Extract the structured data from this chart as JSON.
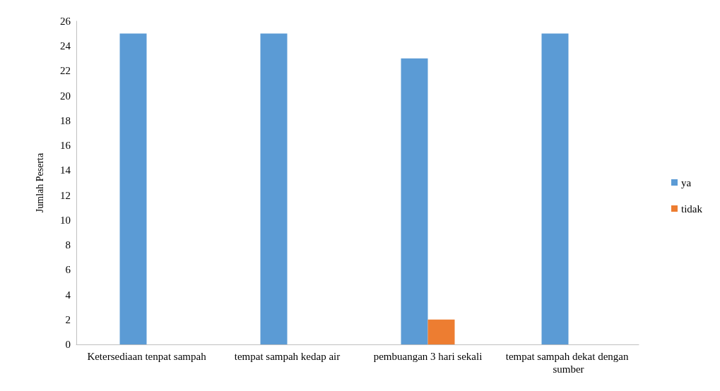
{
  "chart_data": {
    "type": "bar",
    "ylabel": "Jumlah Peserta",
    "categories": [
      "Ketersediaan tenpat sampah",
      "tempat sampah kedap air",
      "pembuangan 3 hari sekali",
      "tempat sampah dekat dengan sumber"
    ],
    "series": [
      {
        "name": "ya",
        "color": "#5b9bd5",
        "values": [
          25,
          25,
          23,
          25
        ]
      },
      {
        "name": "tidak",
        "color": "#ed7d31",
        "values": [
          null,
          null,
          2,
          null
        ]
      }
    ],
    "ylim": [
      0,
      26
    ],
    "yticks": [
      0,
      2,
      4,
      6,
      8,
      10,
      12,
      14,
      16,
      18,
      20,
      22,
      24,
      26
    ],
    "grid": false,
    "legend": "right"
  }
}
